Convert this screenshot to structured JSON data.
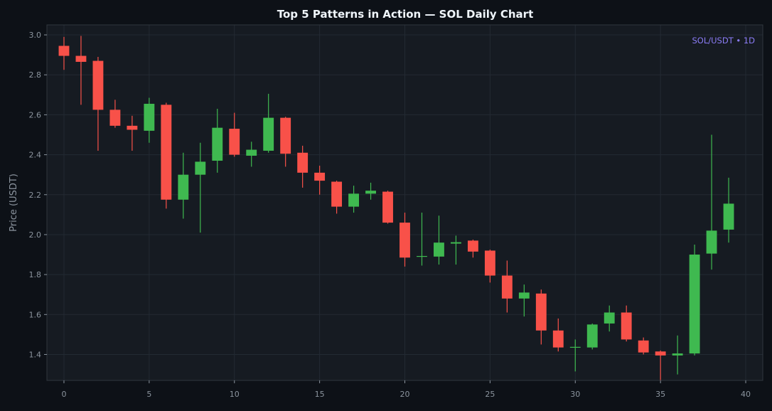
{
  "chart_data": {
    "type": "candlestick",
    "title": "Top 5 Patterns in Action — SOL Daily Chart",
    "ylabel": "Price (USDT)",
    "xlabel": "",
    "annotation": "SOL/USDT • 1D",
    "xlim": [
      -1,
      41
    ],
    "ylim": [
      1.27,
      3.05
    ],
    "xticks": [
      0,
      5,
      10,
      15,
      20,
      25,
      30,
      35,
      40
    ],
    "yticks": [
      1.4,
      1.6,
      1.8,
      2.0,
      2.2,
      2.4,
      2.6,
      2.8,
      3.0
    ],
    "grid": true,
    "candles": [
      {
        "x": 0,
        "open": 2.945,
        "high": 2.99,
        "low": 2.825,
        "close": 2.895
      },
      {
        "x": 1,
        "open": 2.895,
        "high": 2.995,
        "low": 2.65,
        "close": 2.865
      },
      {
        "x": 2,
        "open": 2.87,
        "high": 2.89,
        "low": 2.42,
        "close": 2.625
      },
      {
        "x": 3,
        "open": 2.625,
        "high": 2.675,
        "low": 2.535,
        "close": 2.545
      },
      {
        "x": 4,
        "open": 2.545,
        "high": 2.595,
        "low": 2.42,
        "close": 2.525
      },
      {
        "x": 5,
        "open": 2.52,
        "high": 2.685,
        "low": 2.46,
        "close": 2.655
      },
      {
        "x": 6,
        "open": 2.65,
        "high": 2.66,
        "low": 2.13,
        "close": 2.175
      },
      {
        "x": 7,
        "open": 2.175,
        "high": 2.41,
        "low": 2.08,
        "close": 2.3
      },
      {
        "x": 8,
        "open": 2.3,
        "high": 2.46,
        "low": 2.01,
        "close": 2.365
      },
      {
        "x": 9,
        "open": 2.37,
        "high": 2.63,
        "low": 2.31,
        "close": 2.535
      },
      {
        "x": 10,
        "open": 2.53,
        "high": 2.61,
        "low": 2.39,
        "close": 2.4
      },
      {
        "x": 11,
        "open": 2.395,
        "high": 2.465,
        "low": 2.34,
        "close": 2.425
      },
      {
        "x": 12,
        "open": 2.42,
        "high": 2.705,
        "low": 2.41,
        "close": 2.585
      },
      {
        "x": 13,
        "open": 2.585,
        "high": 2.59,
        "low": 2.34,
        "close": 2.405
      },
      {
        "x": 14,
        "open": 2.41,
        "high": 2.445,
        "low": 2.235,
        "close": 2.31
      },
      {
        "x": 15,
        "open": 2.31,
        "high": 2.345,
        "low": 2.2,
        "close": 2.27
      },
      {
        "x": 16,
        "open": 2.265,
        "high": 2.27,
        "low": 2.105,
        "close": 2.14
      },
      {
        "x": 17,
        "open": 2.14,
        "high": 2.245,
        "low": 2.11,
        "close": 2.205
      },
      {
        "x": 18,
        "open": 2.205,
        "high": 2.26,
        "low": 2.175,
        "close": 2.22
      },
      {
        "x": 19,
        "open": 2.215,
        "high": 2.22,
        "low": 2.055,
        "close": 2.06
      },
      {
        "x": 20,
        "open": 2.06,
        "high": 2.11,
        "low": 1.84,
        "close": 1.885
      },
      {
        "x": 21,
        "open": 1.89,
        "high": 2.11,
        "low": 1.845,
        "close": 1.893
      },
      {
        "x": 22,
        "open": 1.89,
        "high": 2.095,
        "low": 1.85,
        "close": 1.96
      },
      {
        "x": 23,
        "open": 1.955,
        "high": 1.995,
        "low": 1.85,
        "close": 1.962
      },
      {
        "x": 24,
        "open": 1.97,
        "high": 1.975,
        "low": 1.885,
        "close": 1.915
      },
      {
        "x": 25,
        "open": 1.92,
        "high": 1.925,
        "low": 1.76,
        "close": 1.795
      },
      {
        "x": 26,
        "open": 1.795,
        "high": 1.87,
        "low": 1.61,
        "close": 1.68
      },
      {
        "x": 27,
        "open": 1.68,
        "high": 1.75,
        "low": 1.59,
        "close": 1.71
      },
      {
        "x": 28,
        "open": 1.705,
        "high": 1.725,
        "low": 1.45,
        "close": 1.52
      },
      {
        "x": 29,
        "open": 1.52,
        "high": 1.58,
        "low": 1.415,
        "close": 1.435
      },
      {
        "x": 30,
        "open": 1.435,
        "high": 1.475,
        "low": 1.315,
        "close": 1.438
      },
      {
        "x": 31,
        "open": 1.435,
        "high": 1.555,
        "low": 1.425,
        "close": 1.55
      },
      {
        "x": 32,
        "open": 1.555,
        "high": 1.645,
        "low": 1.515,
        "close": 1.61
      },
      {
        "x": 33,
        "open": 1.61,
        "high": 1.645,
        "low": 1.465,
        "close": 1.475
      },
      {
        "x": 34,
        "open": 1.47,
        "high": 1.485,
        "low": 1.4,
        "close": 1.41
      },
      {
        "x": 35,
        "open": 1.415,
        "high": 1.42,
        "low": 1.27,
        "close": 1.395
      },
      {
        "x": 36,
        "open": 1.395,
        "high": 1.495,
        "low": 1.3,
        "close": 1.405
      },
      {
        "x": 37,
        "open": 1.405,
        "high": 1.95,
        "low": 1.395,
        "close": 1.9
      },
      {
        "x": 38,
        "open": 1.905,
        "high": 2.5,
        "low": 1.825,
        "close": 2.02
      },
      {
        "x": 39,
        "open": 2.025,
        "high": 2.285,
        "low": 1.96,
        "close": 2.155
      }
    ]
  },
  "colors": {
    "background": "#0d1117",
    "plot_background": "#161b22",
    "grid": "#232a33",
    "axis_text": "#8b949e",
    "title": "#f0f6fc",
    "bullish": "#3fb950",
    "bearish": "#f85149",
    "annotation": "#8b7cf6"
  }
}
